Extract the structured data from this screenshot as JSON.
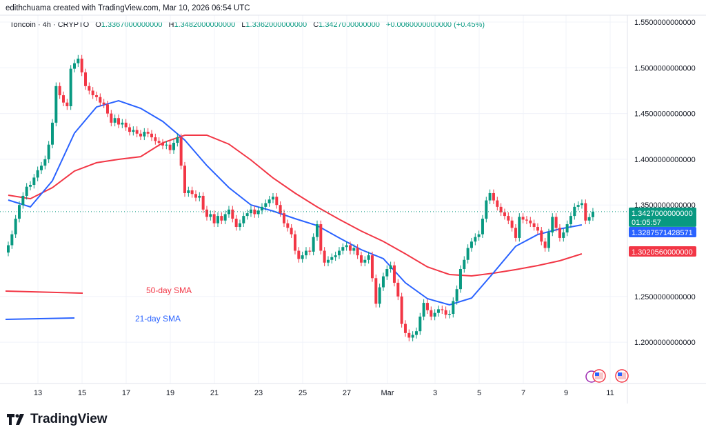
{
  "credit": "edithchuama created with TradingView.com, Mar 10, 2026 06:54 UTC",
  "legend": {
    "symbol": "Toncoin · 4h · CRYPTO",
    "o_label": "O",
    "o": "1.3367000000000",
    "h_label": "H",
    "h": "1.3482000000000",
    "l_label": "L",
    "l": "1.3362000000000",
    "c_label": "C",
    "c": "1.3427000000000",
    "change": "+0.0060000000000 (+0.45%)"
  },
  "logo": "TradingView",
  "colors": {
    "up": "#089981",
    "down": "#f23645",
    "sma21": "#2962ff",
    "sma50": "#f23645"
  },
  "chart_data": {
    "type": "candlestick",
    "y_ticks": [
      "1.5500000000000",
      "1.5000000000000",
      "1.4500000000000",
      "1.4000000000000",
      "1.3500000000000",
      "1.2500000000000",
      "1.2000000000000"
    ],
    "ylim": [
      1.15,
      1.56
    ],
    "x_ticks": [
      "13",
      "15",
      "17",
      "19",
      "21",
      "23",
      "25",
      "27",
      "Mar",
      "3",
      "5",
      "7",
      "9",
      "11"
    ],
    "grid": true,
    "closes": [
      1.306,
      1.318,
      1.335,
      1.35,
      1.36,
      1.37,
      1.372,
      1.38,
      1.388,
      1.393,
      1.4,
      1.416,
      1.44,
      1.48,
      1.47,
      1.462,
      1.458,
      1.499,
      1.505,
      1.51,
      1.495,
      1.48,
      1.475,
      1.47,
      1.468,
      1.462,
      1.46,
      1.45,
      1.44,
      1.445,
      1.438,
      1.44,
      1.435,
      1.43,
      1.432,
      1.428,
      1.425,
      1.43,
      1.428,
      1.424,
      1.42,
      1.418,
      1.415,
      1.416,
      1.41,
      1.418,
      1.424,
      1.393,
      1.363,
      1.366,
      1.362,
      1.358,
      1.36,
      1.345,
      1.337,
      1.34,
      1.33,
      1.338,
      1.333,
      1.34,
      1.345,
      1.335,
      1.326,
      1.33,
      1.338,
      1.341,
      1.345,
      1.34,
      1.344,
      1.348,
      1.352,
      1.356,
      1.359,
      1.35,
      1.341,
      1.33,
      1.325,
      1.318,
      1.3,
      1.291,
      1.295,
      1.3,
      1.299,
      1.315,
      1.329,
      1.3,
      1.287,
      1.29,
      1.293,
      1.295,
      1.3,
      1.304,
      1.306,
      1.3,
      1.303,
      1.295,
      1.287,
      1.29,
      1.295,
      1.27,
      1.242,
      1.26,
      1.272,
      1.28,
      1.284,
      1.265,
      1.25,
      1.22,
      1.21,
      1.205,
      1.208,
      1.212,
      1.228,
      1.243,
      1.235,
      1.228,
      1.232,
      1.236,
      1.235,
      1.23,
      1.231,
      1.245,
      1.258,
      1.28,
      1.29,
      1.303,
      1.31,
      1.315,
      1.318,
      1.335,
      1.355,
      1.363,
      1.355,
      1.348,
      1.342,
      1.338,
      1.333,
      1.325,
      1.314,
      1.337,
      1.334,
      1.333,
      1.33,
      1.326,
      1.322,
      1.31,
      1.303,
      1.32,
      1.337,
      1.325,
      1.314,
      1.32,
      1.329,
      1.338,
      1.348,
      1.35,
      1.352,
      1.333,
      1.3367,
      1.3427
    ],
    "series": [
      {
        "name": "21-day SMA",
        "daily_values": [
          1.3554,
          1.3479,
          1.3765,
          1.4286,
          1.4572,
          1.464,
          1.4557,
          1.4414,
          1.421,
          1.3931,
          1.369,
          1.3501,
          1.3434,
          1.3351,
          1.3275,
          1.314,
          1.3011,
          1.2913,
          1.2649,
          1.2476,
          1.2408,
          1.2483,
          1.2762,
          1.3049,
          1.3177,
          1.3238,
          1.3283
        ]
      },
      {
        "name": "50-day SMA",
        "daily_values": [
          1.3607,
          1.3569,
          1.369,
          1.3871,
          1.3962,
          1.3999,
          1.4029,
          1.418,
          1.4263,
          1.4263,
          1.4165,
          1.3992,
          1.3796,
          1.363,
          1.3479,
          1.3343,
          1.3215,
          1.3102,
          1.2966,
          1.2823,
          1.274,
          1.2725,
          1.2755,
          1.2793,
          1.2838,
          1.2891,
          1.2966
        ]
      }
    ],
    "price_labels": {
      "last": "1.3427000000000",
      "countdown": "01:05:57",
      "sma21": "1.3287571428571",
      "sma50": "1.3020560000000"
    }
  }
}
